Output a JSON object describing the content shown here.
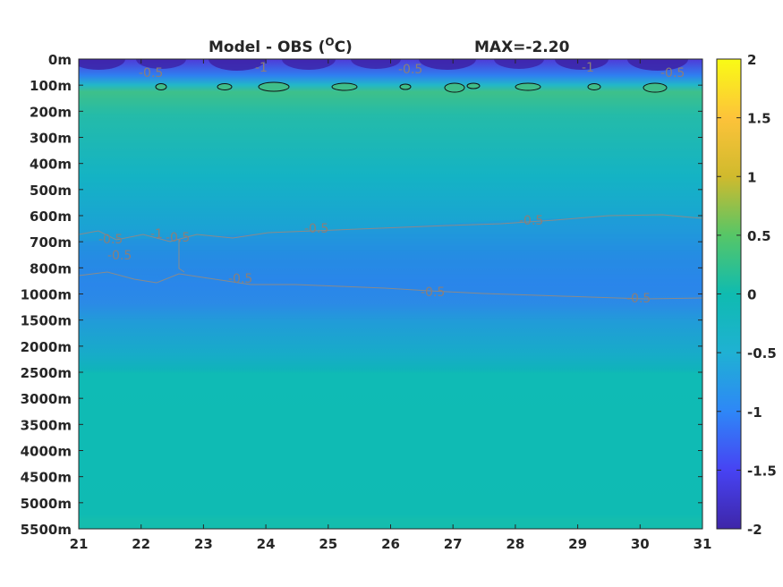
{
  "chart_data": {
    "type": "heatmap",
    "title": "Model - OBS (",
    "title_super": "O",
    "title_suffix": "C)",
    "annotation": "MAX=-2.20",
    "xlim": [
      21,
      31
    ],
    "x_ticks": [
      "21",
      "22",
      "23",
      "24",
      "25",
      "26",
      "27",
      "28",
      "29",
      "30",
      "31"
    ],
    "y_ticks": [
      "0m",
      "100m",
      "200m",
      "300m",
      "400m",
      "500m",
      "600m",
      "700m",
      "800m",
      "1000m",
      "1500m",
      "2000m",
      "2500m",
      "3000m",
      "3500m",
      "4000m",
      "4500m",
      "5000m",
      "5500m"
    ],
    "colorbar": {
      "ticks": [
        "2",
        "1.5",
        "1",
        "0.5",
        "0",
        "-0.5",
        "-1",
        "-1.5",
        "-2"
      ],
      "range": [
        -2,
        2
      ],
      "colormap": [
        "#3e26a8",
        "#4743f3",
        "#2e87f7",
        "#1fb1d3",
        "#0fbbb0",
        "#56c667",
        "#d0ba2d",
        "#fdc33a",
        "#f9fb15"
      ]
    },
    "depth_profile": [
      {
        "depth": "0m",
        "value": -2.2
      },
      {
        "depth": "100m",
        "value": 0.0
      },
      {
        "depth": "200m",
        "value": 0.05
      },
      {
        "depth": "300m",
        "value": -0.05
      },
      {
        "depth": "400m",
        "value": -0.15
      },
      {
        "depth": "500m",
        "value": -0.3
      },
      {
        "depth": "600m",
        "value": -0.45
      },
      {
        "depth": "700m",
        "value": -0.6
      },
      {
        "depth": "800m",
        "value": -0.65
      },
      {
        "depth": "1000m",
        "value": -0.45
      },
      {
        "depth": "1500m",
        "value": -0.25
      },
      {
        "depth": "2000m",
        "value": -0.1
      },
      {
        "depth": "2500m",
        "value": -0.02
      },
      {
        "depth": "3000m",
        "value": -0.02
      },
      {
        "depth": "5500m",
        "value": -0.02
      }
    ],
    "contour_labels": [
      "-0.5",
      "-1",
      "-0.5",
      "-1",
      "-0.5",
      "-0.5",
      "-1",
      "-0.5",
      "-0.5",
      "-0.5",
      "-0.5",
      "-0.5",
      "-0.5"
    ]
  }
}
